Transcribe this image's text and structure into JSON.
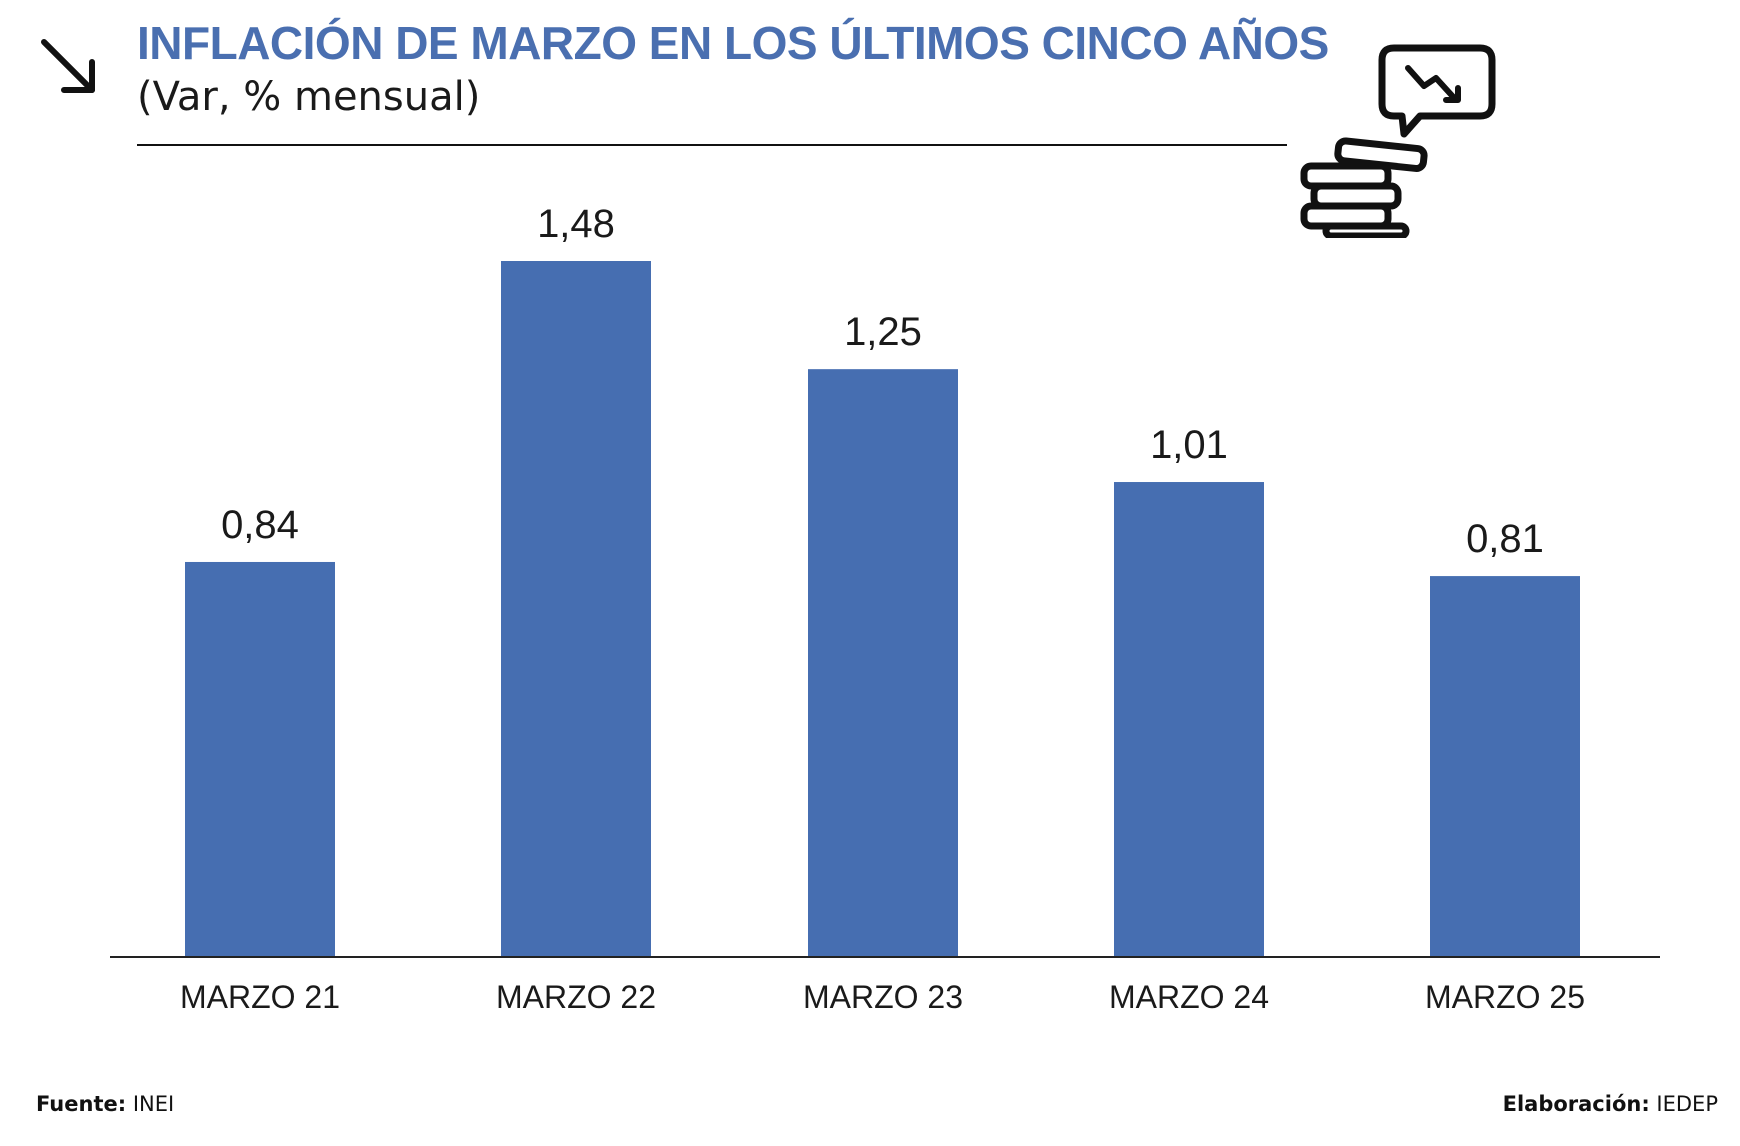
{
  "header": {
    "title": "INFLACIÓN DE MARZO EN LOS ÚLTIMOS CINCO AÑOS",
    "subtitle": "(Var, % mensual)"
  },
  "icons": {
    "trend": "arrow-down-right-icon",
    "decor": "coins-chat-downtrend-icon"
  },
  "colors": {
    "bar": "#466eb1",
    "title": "#4a6fb0"
  },
  "footer": {
    "source_label": "Fuente:",
    "source_value": "INEI",
    "credit_label": "Elaboración:",
    "credit_value": "IEDEP"
  },
  "chart_data": {
    "type": "bar",
    "title": "INFLACIÓN DE MARZO EN LOS ÚLTIMOS CINCO AÑOS",
    "subtitle": "(Var, % mensual)",
    "categories": [
      "MARZO 21",
      "MARZO 22",
      "MARZO 23",
      "MARZO 24",
      "MARZO 25"
    ],
    "values": [
      0.84,
      1.48,
      1.25,
      1.01,
      0.81
    ],
    "value_labels": [
      "0,84",
      "1,48",
      "1,25",
      "1,01",
      "0,81"
    ],
    "xlabel": "",
    "ylabel": "",
    "ylim": [
      0,
      1.48
    ],
    "grid": false,
    "legend": "none"
  }
}
